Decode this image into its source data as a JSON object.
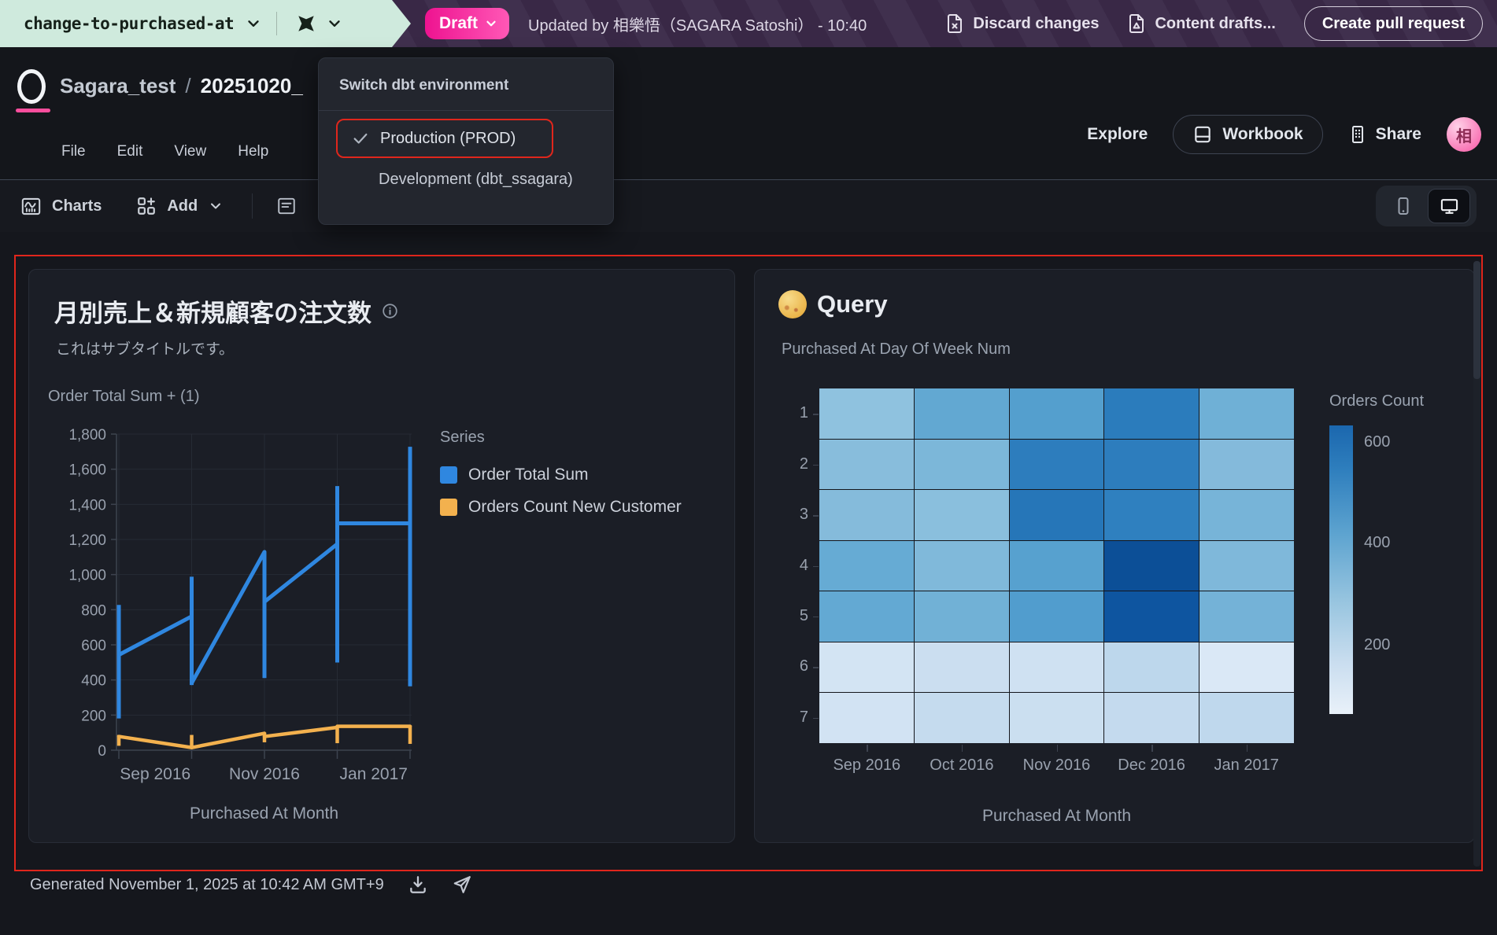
{
  "top_bar": {
    "branch": "change-to-purchased-at",
    "draft_label": "Draft",
    "updated_text": "Updated by 相樂悟（SAGARA Satoshi） - 10:40",
    "discard_label": "Discard changes",
    "content_drafts_label": "Content drafts...",
    "create_pr_label": "Create pull request",
    "colors": {
      "mint": "#cfeadd",
      "purple": "#3b2a49",
      "draft_gradient": [
        "#ee1390",
        "#ff58b6"
      ]
    }
  },
  "header": {
    "workspace": "Sagara_test",
    "separator": "/",
    "doc_title": "20251020_",
    "menus": [
      "File",
      "Edit",
      "View",
      "Help"
    ],
    "explore_label": "Explore",
    "workbook_label": "Workbook",
    "share_label": "Share",
    "avatar_text": "相"
  },
  "env_dropdown": {
    "title": "Switch dbt environment",
    "items": [
      {
        "label": "Production (PROD)",
        "checked": true,
        "annotated_red_box": true
      },
      {
        "label": "Development (dbt_ssagara)",
        "checked": false,
        "annotated_red_box": false
      }
    ]
  },
  "toolbar": {
    "charts_label": "Charts",
    "add_label": "Add"
  },
  "footer": {
    "generated_text": "Generated November 1, 2025 at 10:42 AM GMT+9"
  },
  "chart_data": [
    {
      "type": "line",
      "title": "月別売上＆新規顧客の注文数",
      "subtitle": "これはサブタイトルです。",
      "ylabel": "Order Total Sum + (1)",
      "xlabel": "Purchased At Month",
      "ylim": [
        0,
        1800
      ],
      "y_ticks": [
        0,
        200,
        400,
        600,
        800,
        1000,
        1200,
        1400,
        1600,
        1800
      ],
      "x_categories": [
        "Sep 2016",
        "Oct 2016",
        "Nov 2016",
        "Dec 2016",
        "Jan 2017"
      ],
      "x_axis_labels": [
        {
          "pos": 0.5,
          "label": "Sep 2016"
        },
        {
          "pos": 2,
          "label": "Nov 2016"
        },
        {
          "pos": 3.5,
          "label": "Jan 2017"
        }
      ],
      "grid": true,
      "legend_position": "right",
      "legend_title": "Series",
      "series": [
        {
          "name": "Order Total Sum",
          "color": "#2f87e0",
          "segments": [
            [
              [
                0,
                543
              ],
              [
                1,
                762
              ]
            ],
            [
              [
                1,
                382
              ],
              [
                2,
                1129
              ]
            ],
            [
              [
                2,
                845
              ],
              [
                3,
                1174
              ]
            ],
            [
              [
                3,
                1292
              ],
              [
                4,
                1292
              ]
            ]
          ],
          "range_bars": [
            [
              0,
              181,
              827
            ],
            [
              1,
              371,
              988
            ],
            [
              2,
              411,
              1129
            ],
            [
              3,
              499,
              1504
            ],
            [
              4,
              364,
              1728
            ]
          ]
        },
        {
          "name": "Orders Count New Customer",
          "color": "#f3b14e",
          "segments": [
            [
              [
                0,
                78
              ],
              [
                1,
                15
              ]
            ],
            [
              [
                1,
                15
              ],
              [
                2,
                96
              ]
            ],
            [
              [
                2,
                78
              ],
              [
                3,
                130
              ]
            ],
            [
              [
                3,
                136
              ],
              [
                4,
                136
              ]
            ]
          ],
          "range_bars": [
            [
              0,
              25,
              87
            ],
            [
              1,
              13,
              87
            ],
            [
              2,
              45,
              100
            ],
            [
              3,
              40,
              136
            ],
            [
              4,
              36,
              141
            ]
          ]
        }
      ]
    },
    {
      "type": "heatmap",
      "title": "Query",
      "title_emoji": "full-moon",
      "panel_label": "Purchased At Day Of Week Num",
      "xlabel": "Purchased At Month",
      "x_categories": [
        "Sep 2016",
        "Oct 2016",
        "Nov 2016",
        "Dec 2016",
        "Jan 2017"
      ],
      "y_categories": [
        "1",
        "2",
        "3",
        "4",
        "5",
        "6",
        "7"
      ],
      "colorbar": {
        "title": "Orders Count",
        "ticks": [
          600,
          400,
          200
        ],
        "domain": [
          64,
          634
        ]
      },
      "values": [
        [
          270,
          380,
          415,
          500,
          345
        ],
        [
          285,
          315,
          495,
          495,
          295
        ],
        [
          292,
          280,
          520,
          485,
          325
        ],
        [
          370,
          310,
          405,
          640,
          310
        ],
        [
          378,
          340,
          420,
          620,
          335
        ],
        [
          98,
          120,
          110,
          150,
          80
        ],
        [
          100,
          132,
          118,
          135,
          145
        ]
      ],
      "colors": [
        [
          "#8fc2df",
          "#62a8d2",
          "#549fce",
          "#2b7cbc",
          "#6fb0d6"
        ],
        [
          "#88bddc",
          "#7cb7d9",
          "#2d7dbd",
          "#2d7dbd",
          "#84badb"
        ],
        [
          "#85bbdb",
          "#8abfdd",
          "#2676b8",
          "#2f80bf",
          "#77b4d8"
        ],
        [
          "#66abd4",
          "#80b9da",
          "#57a1cf",
          "#0c4f97",
          "#7fb8da"
        ],
        [
          "#63a9d3",
          "#71b1d6",
          "#519dce",
          "#0e55a0",
          "#74b2d7"
        ],
        [
          "#d3e4f3",
          "#cbdef0",
          "#cfe1f2",
          "#bdd7ec",
          "#dae8f6"
        ],
        [
          "#d2e3f3",
          "#c5dbee",
          "#cbdff0",
          "#c4daee",
          "#bfd8ed"
        ]
      ]
    }
  ]
}
